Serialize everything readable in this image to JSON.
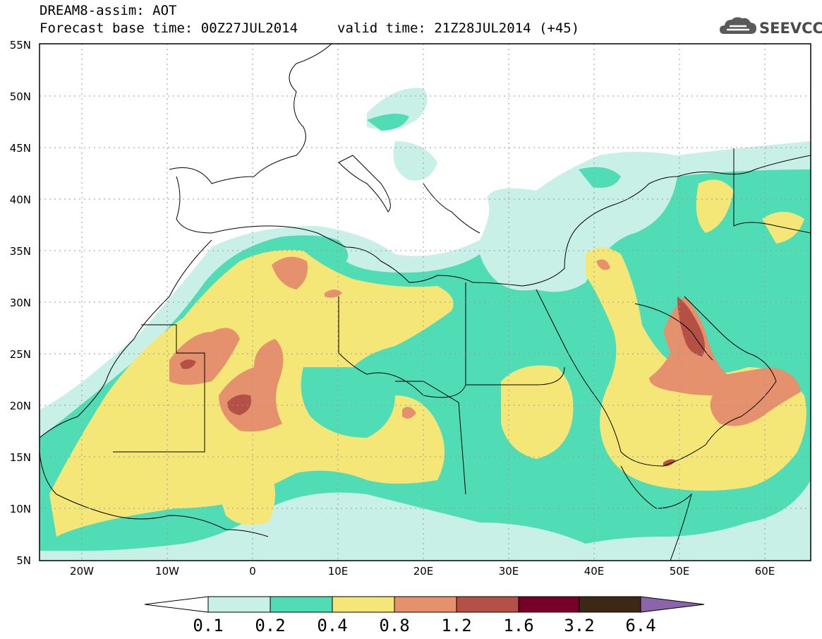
{
  "header": {
    "title": "DREAM8-assim: AOT",
    "base_time": "Forecast base time: 00Z27JUL2014",
    "valid_time": "valid time: 21Z28JUL2014 (+45)",
    "logo_text": "SEEVCCC",
    "logo_icon": "cloud-icon"
  },
  "axes": {
    "lat_labels": [
      "55N",
      "50N",
      "45N",
      "40N",
      "35N",
      "30N",
      "25N",
      "20N",
      "15N",
      "10N",
      "5N"
    ],
    "lon_labels": [
      "20W",
      "10W",
      "0",
      "10E",
      "20E",
      "30E",
      "40E",
      "50E",
      "60E"
    ]
  },
  "colorbar": {
    "levels": [
      "0.1",
      "0.2",
      "0.4",
      "0.8",
      "1.2",
      "1.6",
      "3.2",
      "6.4"
    ],
    "colors": [
      "#ffffff",
      "#c8f0e6",
      "#50dcb4",
      "#f5e678",
      "#e6916e",
      "#b45046",
      "#780028",
      "#3c2814",
      "#8c64aa"
    ]
  }
}
